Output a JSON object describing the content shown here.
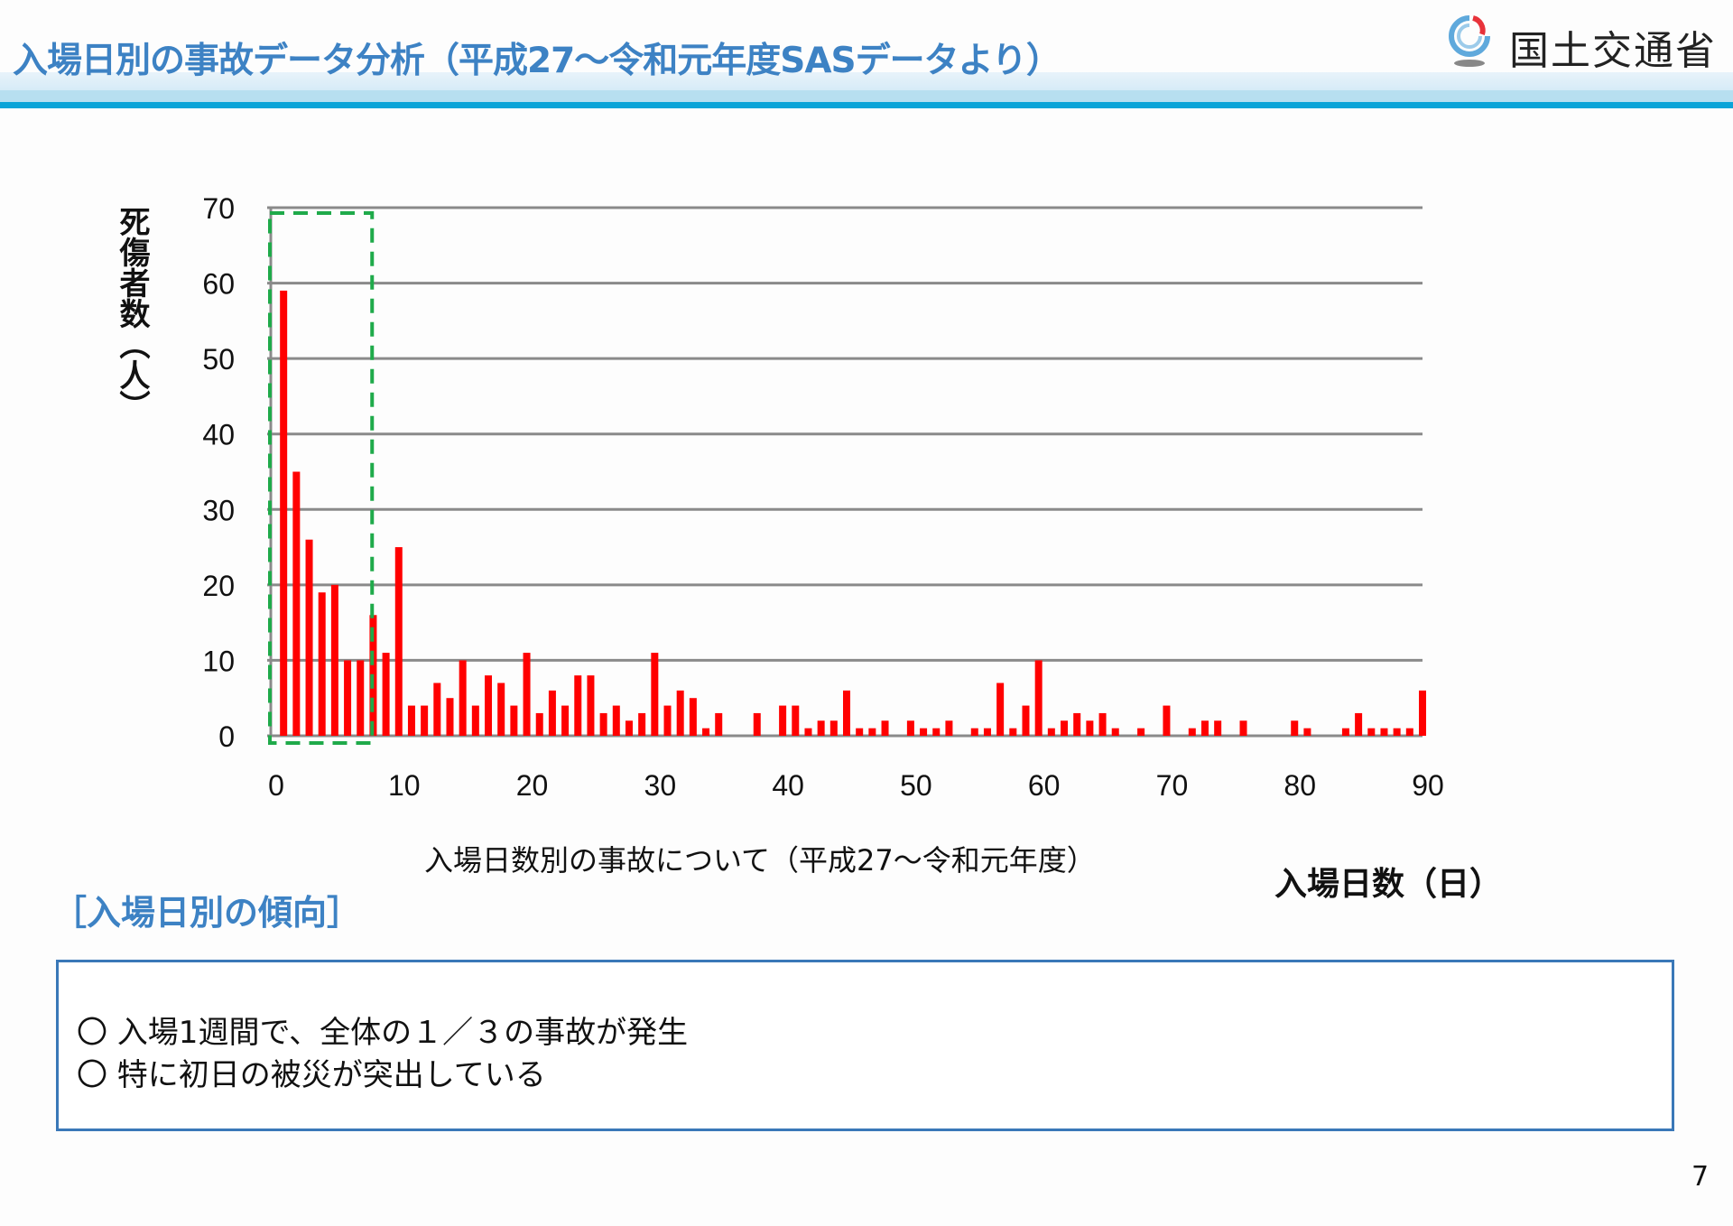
{
  "header": {
    "title": "入場日別の事故データ分析（平成27～令和元年度SASデータより）",
    "logo_text": "国土交通省"
  },
  "chart_data": {
    "type": "bar",
    "title": "入場日数別の事故について（平成27～令和元年度）",
    "xlabel": "入場日数（日）",
    "ylabel": "死傷者数（人）",
    "xlim": [
      0,
      90
    ],
    "ylim": [
      0,
      70
    ],
    "xticks": [
      0,
      10,
      20,
      30,
      40,
      50,
      60,
      70,
      80,
      90
    ],
    "yticks": [
      0,
      10,
      20,
      30,
      40,
      50,
      60,
      70
    ],
    "grid": true,
    "highlight_range": [
      0,
      7
    ],
    "bar_color": "#ff0000",
    "highlight_color": "#1faa4a",
    "x": [
      1,
      2,
      3,
      4,
      5,
      6,
      7,
      8,
      9,
      10,
      11,
      12,
      13,
      14,
      15,
      16,
      17,
      18,
      19,
      20,
      21,
      22,
      23,
      24,
      25,
      26,
      27,
      28,
      29,
      30,
      31,
      32,
      33,
      34,
      35,
      36,
      37,
      38,
      39,
      40,
      41,
      42,
      43,
      44,
      45,
      46,
      47,
      48,
      49,
      50,
      51,
      52,
      53,
      54,
      55,
      56,
      57,
      58,
      59,
      60,
      61,
      62,
      63,
      64,
      65,
      66,
      67,
      68,
      69,
      70,
      71,
      72,
      73,
      74,
      75,
      76,
      77,
      78,
      79,
      80,
      81,
      82,
      83,
      84,
      85,
      86,
      87,
      88,
      89,
      90
    ],
    "values": [
      59,
      35,
      26,
      19,
      20,
      10,
      10,
      16,
      11,
      25,
      4,
      4,
      7,
      5,
      10,
      4,
      8,
      7,
      4,
      11,
      3,
      6,
      4,
      8,
      8,
      3,
      4,
      2,
      3,
      11,
      4,
      6,
      5,
      1,
      3,
      0,
      0,
      3,
      0,
      4,
      4,
      1,
      2,
      2,
      6,
      1,
      1,
      2,
      0,
      2,
      1,
      1,
      2,
      0,
      1,
      1,
      7,
      1,
      4,
      10,
      1,
      2,
      3,
      2,
      3,
      1,
      0,
      1,
      0,
      4,
      0,
      1,
      2,
      2,
      0,
      2,
      0,
      0,
      0,
      2,
      1,
      0,
      0,
      1,
      3,
      1,
      1,
      1,
      1,
      6
    ]
  },
  "summary": {
    "heading": "［入場日別の傾向］",
    "items": [
      "〇 入場1週間で、全体の１／３の事故が発生",
      "〇 特に初日の被災が突出している"
    ]
  },
  "page_number": "7"
}
